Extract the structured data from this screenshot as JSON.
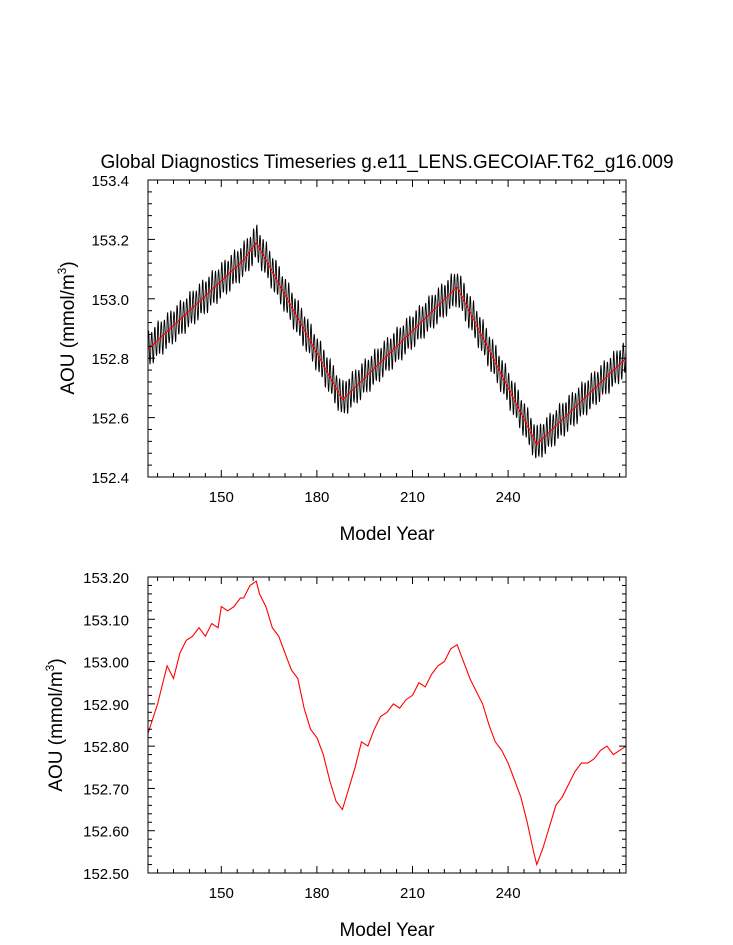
{
  "colors": {
    "monthly": "#000000",
    "annual": "#ff0000",
    "axis": "#000000"
  },
  "chart_data": [
    {
      "type": "line",
      "title": "Global Diagnostics Timeseries g.e11_LENS.GECOIAF.T62_g16.009",
      "xlabel": "Model Year",
      "ylabel": "AOU (mmol/m",
      "ylabel_sup": "3",
      "ylabel_end": ")",
      "xlim": [
        127,
        277
      ],
      "ylim": [
        152.4,
        153.4
      ],
      "xticks": [
        150,
        180,
        210,
        240
      ],
      "xtick_labels": [
        "150",
        "180",
        "210",
        "240"
      ],
      "yticks": [
        152.4,
        152.6,
        152.8,
        153.0,
        153.2,
        153.4
      ],
      "ytick_labels": [
        "152.4",
        "152.6",
        "152.8",
        "153.0",
        "153.2",
        "153.4"
      ],
      "series": [
        {
          "name": "monthly",
          "color": "#000000",
          "x": [
            127,
            157,
            161,
            188,
            224,
            249,
            277
          ],
          "y": [
            152.83,
            153.13,
            153.19,
            152.66,
            153.04,
            152.51,
            152.8
          ],
          "seasonal_amplitude": 0.065,
          "points_per_year": 12
        },
        {
          "name": "annual",
          "color": "#ff0000",
          "x": [
            127,
            157,
            161,
            188,
            224,
            249,
            277
          ],
          "y": [
            152.83,
            153.13,
            153.19,
            152.66,
            153.04,
            152.51,
            152.8
          ]
        }
      ]
    },
    {
      "type": "line",
      "title": "",
      "xlabel": "Model Year",
      "ylabel": "AOU (mmol/m",
      "ylabel_sup": "3",
      "ylabel_end": ")",
      "xlim": [
        127,
        277
      ],
      "ylim": [
        152.5,
        153.2
      ],
      "xticks": [
        150,
        180,
        210,
        240
      ],
      "xtick_labels": [
        "150",
        "180",
        "210",
        "240"
      ],
      "yticks": [
        152.5,
        152.6,
        152.7,
        152.8,
        152.9,
        153.0,
        153.1,
        153.2
      ],
      "ytick_labels": [
        "152.50",
        "152.60",
        "152.70",
        "152.80",
        "152.90",
        "153.00",
        "153.10",
        "153.20"
      ],
      "series": [
        {
          "name": "annual",
          "color": "#ff0000",
          "x": [
            127,
            130,
            133,
            135,
            137,
            139,
            141,
            143,
            145,
            147,
            149,
            150,
            152,
            154,
            156,
            157,
            159,
            161,
            162,
            164,
            166,
            168,
            170,
            172,
            174,
            176,
            178,
            180,
            182,
            184,
            186,
            188,
            190,
            192,
            194,
            196,
            198,
            200,
            202,
            204,
            206,
            208,
            210,
            212,
            214,
            216,
            218,
            220,
            222,
            224,
            226,
            228,
            230,
            232,
            234,
            236,
            238,
            240,
            242,
            244,
            246,
            248,
            249,
            251,
            253,
            255,
            257,
            259,
            261,
            263,
            265,
            267,
            269,
            271,
            273,
            275,
            277
          ],
          "y": [
            152.83,
            152.9,
            152.99,
            152.96,
            153.02,
            153.05,
            153.06,
            153.08,
            153.06,
            153.09,
            153.08,
            153.13,
            153.12,
            153.13,
            153.15,
            153.15,
            153.18,
            153.19,
            153.16,
            153.13,
            153.08,
            153.06,
            153.02,
            152.98,
            152.96,
            152.89,
            152.84,
            152.82,
            152.78,
            152.72,
            152.67,
            152.65,
            152.7,
            152.75,
            152.81,
            152.8,
            152.84,
            152.87,
            152.88,
            152.9,
            152.89,
            152.91,
            152.92,
            152.95,
            152.94,
            152.97,
            152.99,
            153.0,
            153.03,
            153.04,
            153.0,
            152.96,
            152.93,
            152.9,
            152.85,
            152.81,
            152.79,
            152.76,
            152.72,
            152.68,
            152.62,
            152.55,
            152.52,
            152.56,
            152.61,
            152.66,
            152.68,
            152.71,
            152.74,
            152.76,
            152.76,
            152.77,
            152.79,
            152.8,
            152.78,
            152.79,
            152.8
          ]
        }
      ]
    }
  ]
}
